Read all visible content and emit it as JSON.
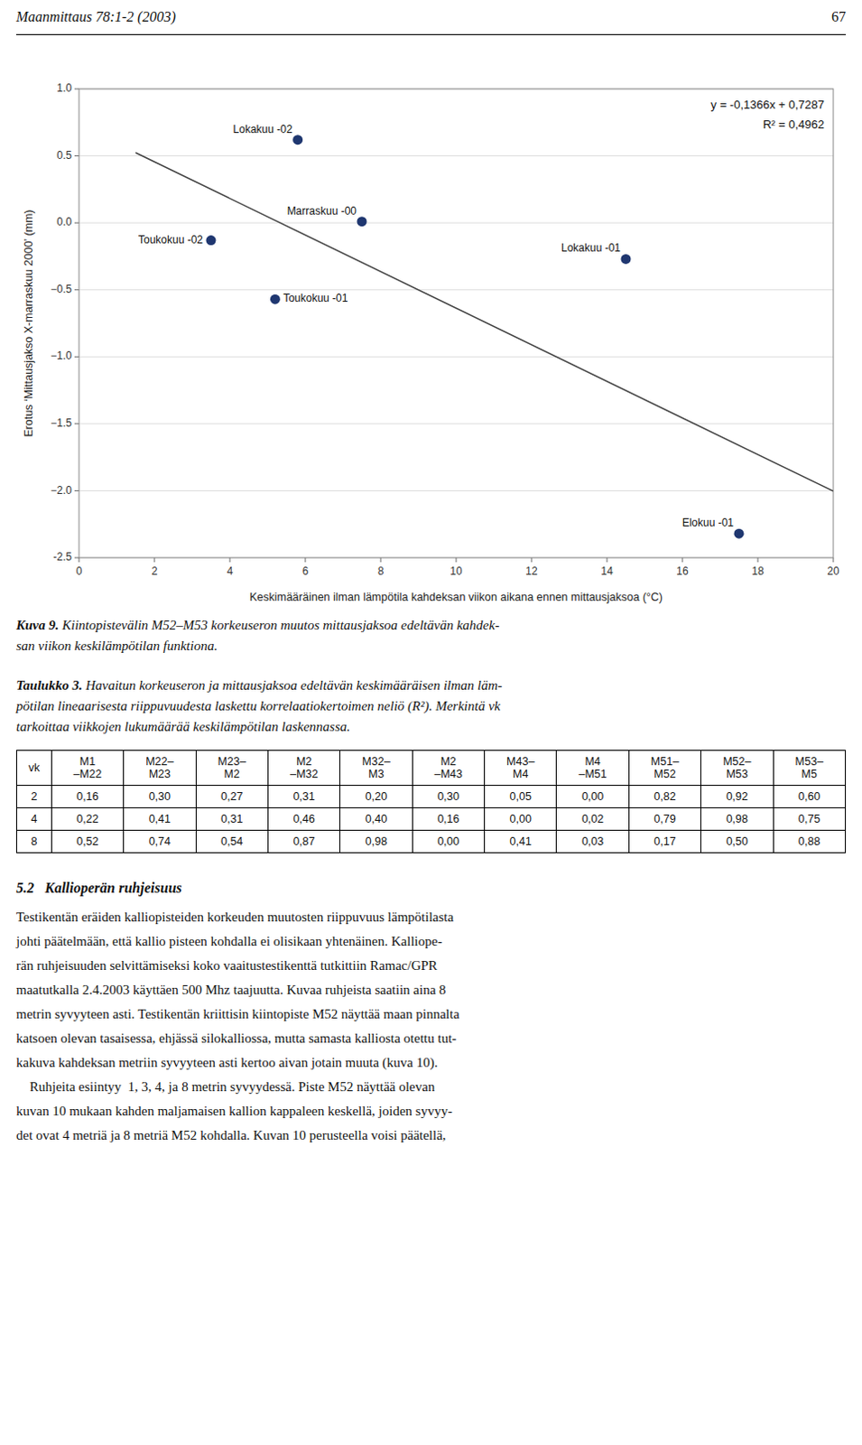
{
  "chart_data": {
    "type": "scatter",
    "xlabel": "Keskimääräinen ilman lämpötila kahdeksan viikon aikana ennen mittausjaksoa (°C)",
    "ylabel": "Erotus  ‘Mittausjakso X-marraskuu 2000’  (mm)",
    "xlim": [
      0,
      20
    ],
    "ylim": [
      -2.5,
      1.0
    ],
    "xticks": [
      0,
      2,
      4,
      6,
      8,
      10,
      12,
      14,
      16,
      18,
      20
    ],
    "yticks": [
      -2.5,
      {
        "value": -2,
        "label": "−2.0"
      },
      {
        "value": -1.5,
        "label": "−1.5"
      },
      {
        "value": -1,
        "label": "−1.0"
      },
      {
        "value": -0.5,
        "label": "−0.5"
      },
      {
        "value": 0,
        "label": "0.0"
      },
      0.5,
      {
        "value": 1,
        "label": "1.0"
      }
    ],
    "grid": "y",
    "series": [
      {
        "type": "scatter",
        "marker": "circle",
        "color": "#1F3770",
        "x": [
          3.5,
          5.2,
          5.8,
          7.5,
          14.5,
          17.5
        ],
        "values": [
          -0.13,
          -0.57,
          0.62,
          0.01,
          -0.27,
          -2.32
        ],
        "labels": [
          "Toukokuu -02",
          "Toukokuu -01",
          "Lokakuu -02",
          "Marraskuu -00",
          "Lokakuu -01",
          "Elokuu -01"
        ]
      },
      {
        "type": "line",
        "line_style": "solid",
        "color": "#444444",
        "x": [
          1.5,
          20.0
        ],
        "values": [
          0.5238,
          -2.0033
        ]
      }
    ],
    "annotations": [
      "y = -0,1366x + 0,7287",
      "R² = 0,4962"
    ]
  },
  "page": {
    "header": "Maanmittaus 78:1-2 (2003)",
    "page_number": "67",
    "caption": [
      "Kuva 9.",
      " Kiintopistevälin M52–M53 korkeuseron muutos mittausjaksoa edeltävän kahdek-",
      "san viikon keskilämpötilan funktiona."
    ],
    "table_caption": [
      "Taulukko 3.",
      " Havaitun korkeuseron ja mittausjaksoa edeltävän keskimääräisen ilman läm-",
      "pötilan lineaarisesta riippuvuudesta laskettu korrelaatiokertoimen neliö (R²). Merkintä vk",
      "tarkoittaa viikkojen lukumäärää keskilämpötilan laskennassa."
    ],
    "table_headers": [
      [
        "vk"
      ],
      [
        "M1",
        "–M22"
      ],
      [
        "M22–",
        "M23"
      ],
      [
        "M23–",
        "M2"
      ],
      [
        "M2",
        "–M32"
      ],
      [
        "M32–",
        "M3"
      ],
      [
        "M2",
        "–M43"
      ],
      [
        "M43–",
        "M4"
      ],
      [
        "M4",
        "–M51"
      ],
      [
        "M51–",
        "M52"
      ],
      [
        "M52–",
        "M53"
      ],
      [
        "M53–",
        "M5"
      ]
    ],
    "table_rows": [
      [
        "2",
        "0,16",
        "0,30",
        "0,27",
        "0,31",
        "0,20",
        "0,30",
        "0,05",
        "0,00",
        "0,82",
        "0,92",
        "0,60"
      ],
      [
        "4",
        "0,22",
        "0,41",
        "0,31",
        "0,46",
        "0,40",
        "0,16",
        "0,00",
        "0,02",
        "0,79",
        "0,98",
        "0,75"
      ],
      [
        "8",
        "0,52",
        "0,74",
        "0,54",
        "0,87",
        "0,98",
        "0,00",
        "0,41",
        "0,03",
        "0,17",
        "0,50",
        "0,88"
      ]
    ],
    "section": [
      "5.2",
      "Kallioperän ruhjeisuus"
    ],
    "body": [
      "Testikentän eräiden kalliopisteiden korkeuden muutosten riippuvuus lämpötilasta",
      "johti päätelmään, että kallio pisteen kohdalla ei olisikaan yhtenäinen. Kalliope-",
      "rän ruhjeisuuden selvittämiseksi koko vaaitustestikenttä tutkittiin Ramac/GPR",
      "maatutkalla 2.4.2003 käyttäen 500 Mhz taajuutta. Kuvaa ruhjeista saatiin aina 8",
      "metrin syvyyteen asti. Testikentän kriittisin kiintopiste M52 näyttää maan pinnalta",
      "katsoen olevan tasaisessa, ehjässä silokalliossa, mutta samasta kalliosta otettu tut-",
      "kakuva kahdeksan metriin syvyyteen asti kertoo aivan jotain muuta (kuva 10).",
      "    Ruhjeita esiintyy  1, 3, 4, ja 8 metrin syvyydessä. Piste M52 näyttää olevan",
      "kuvan 10 mukaan kahden maljamaisen kallion kappaleen keskellä, joiden syvyy-",
      "det ovat 4 metriä ja 8 metriä M52 kohdalla. Kuvan 10 perusteella voisi päätellä,"
    ]
  }
}
